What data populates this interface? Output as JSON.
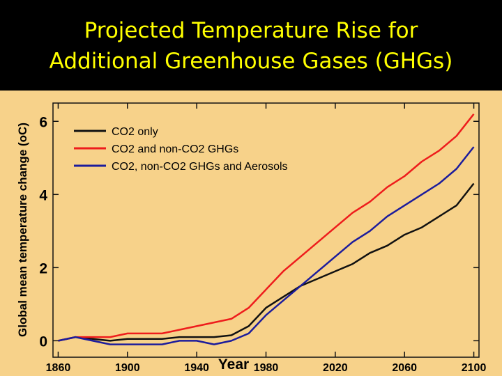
{
  "slide": {
    "title_line1": "Projected Temperature Rise for",
    "title_line2": "Additional Greenhouse Gases (GHGs)",
    "title_color": "#ffff00",
    "background_color": "#000000"
  },
  "chart_data": {
    "type": "line",
    "title": "",
    "xlabel": "Year",
    "ylabel": "Global mean temperature change (oC)",
    "xlim": [
      1857,
      2103
    ],
    "ylim": [
      -0.45,
      6.5
    ],
    "xticks": [
      "1860",
      "1900",
      "1940",
      "1980",
      "2020",
      "2060",
      "2100"
    ],
    "yticks": [
      "0",
      "2",
      "4",
      "6"
    ],
    "plot_background": "#f7d28a",
    "legend_position": "top-left",
    "grid": false,
    "series": [
      {
        "name": "CO2 only",
        "color": "#111111",
        "x": [
          1860,
          1870,
          1880,
          1890,
          1900,
          1910,
          1920,
          1930,
          1940,
          1950,
          1960,
          1970,
          1980,
          1990,
          2000,
          2010,
          2020,
          2030,
          2040,
          2050,
          2060,
          2070,
          2080,
          2090,
          2100
        ],
        "y": [
          0.0,
          0.1,
          0.05,
          0.0,
          0.05,
          0.05,
          0.05,
          0.1,
          0.1,
          0.1,
          0.15,
          0.4,
          0.9,
          1.2,
          1.5,
          1.7,
          1.9,
          2.1,
          2.4,
          2.6,
          2.9,
          3.1,
          3.4,
          3.7,
          4.3
        ]
      },
      {
        "name": "CO2 and non-CO2 GHGs",
        "color": "#ee1c1c",
        "x": [
          1860,
          1870,
          1880,
          1890,
          1900,
          1910,
          1920,
          1930,
          1940,
          1950,
          1960,
          1970,
          1980,
          1990,
          2000,
          2010,
          2020,
          2030,
          2040,
          2050,
          2060,
          2070,
          2080,
          2090,
          2100
        ],
        "y": [
          0.0,
          0.1,
          0.1,
          0.1,
          0.2,
          0.2,
          0.2,
          0.3,
          0.4,
          0.5,
          0.6,
          0.9,
          1.4,
          1.9,
          2.3,
          2.7,
          3.1,
          3.5,
          3.8,
          4.2,
          4.5,
          4.9,
          5.2,
          5.6,
          6.2
        ]
      },
      {
        "name": "CO2, non-CO2 GHGs and Aerosols",
        "color": "#1c1c9c",
        "x": [
          1860,
          1870,
          1880,
          1890,
          1900,
          1910,
          1920,
          1930,
          1940,
          1950,
          1960,
          1970,
          1980,
          1990,
          2000,
          2010,
          2020,
          2030,
          2040,
          2050,
          2060,
          2070,
          2080,
          2090,
          2100
        ],
        "y": [
          0.0,
          0.1,
          0.0,
          -0.1,
          -0.1,
          -0.1,
          -0.1,
          0.0,
          0.0,
          -0.1,
          0.0,
          0.2,
          0.7,
          1.1,
          1.5,
          1.9,
          2.3,
          2.7,
          3.0,
          3.4,
          3.7,
          4.0,
          4.3,
          4.7,
          5.3
        ]
      }
    ]
  }
}
